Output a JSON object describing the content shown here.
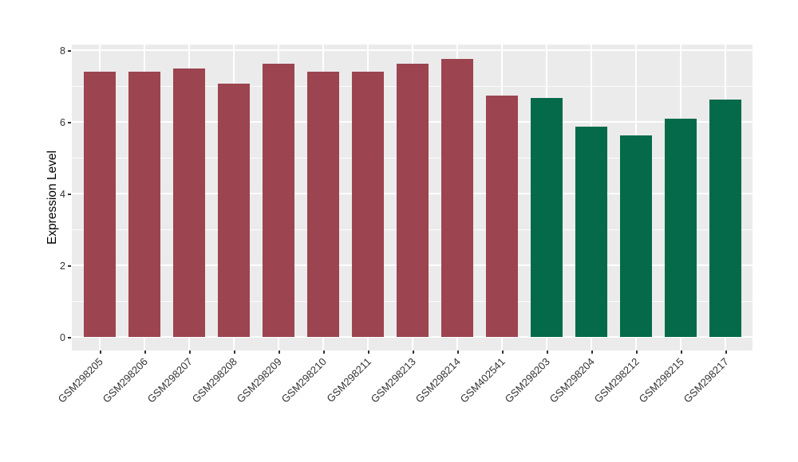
{
  "page": {
    "background": "#FFFFFF"
  },
  "chart_data": {
    "type": "bar",
    "title": "",
    "xlabel": "",
    "ylabel": "Expression Level",
    "ylim": [
      0,
      8.5
    ],
    "yticks": [
      0,
      2,
      4,
      6,
      8
    ],
    "minor_gridlines": [
      1,
      3,
      5,
      7
    ],
    "grid": true,
    "legend": "none",
    "panel_background": "#EBEBEB",
    "gridline_color": "#FFFFFF",
    "tick_color": "#333333",
    "categories": [
      "GSM298205",
      "GSM298206",
      "GSM298207",
      "GSM298208",
      "GSM298209",
      "GSM298210",
      "GSM298211",
      "GSM298213",
      "GSM298214",
      "GSM402541",
      "GSM298203",
      "GSM298204",
      "GSM298212",
      "GSM298215",
      "GSM298217"
    ],
    "bars": [
      {
        "label": "GSM298205",
        "value": 7.39,
        "group": "group1"
      },
      {
        "label": "GSM298206",
        "value": 7.39,
        "group": "group1"
      },
      {
        "label": "GSM298207",
        "value": 7.5,
        "group": "group1"
      },
      {
        "label": "GSM298208",
        "value": 7.07,
        "group": "group1"
      },
      {
        "label": "GSM298209",
        "value": 7.63,
        "group": "group1"
      },
      {
        "label": "GSM298210",
        "value": 7.39,
        "group": "group1"
      },
      {
        "label": "GSM298211",
        "value": 7.39,
        "group": "group1"
      },
      {
        "label": "GSM298213",
        "value": 7.62,
        "group": "group1"
      },
      {
        "label": "GSM298214",
        "value": 7.76,
        "group": "group1"
      },
      {
        "label": "GSM402541",
        "value": 6.73,
        "group": "group1"
      },
      {
        "label": "GSM298203",
        "value": 6.66,
        "group": "group2"
      },
      {
        "label": "GSM298204",
        "value": 5.87,
        "group": "group2"
      },
      {
        "label": "GSM298212",
        "value": 5.62,
        "group": "group2"
      },
      {
        "label": "GSM298215",
        "value": 6.08,
        "group": "group2"
      },
      {
        "label": "GSM298217",
        "value": 6.63,
        "group": "group2"
      }
    ],
    "group_colors": {
      "group1": "#9C4450",
      "group2": "#046A4A"
    }
  }
}
